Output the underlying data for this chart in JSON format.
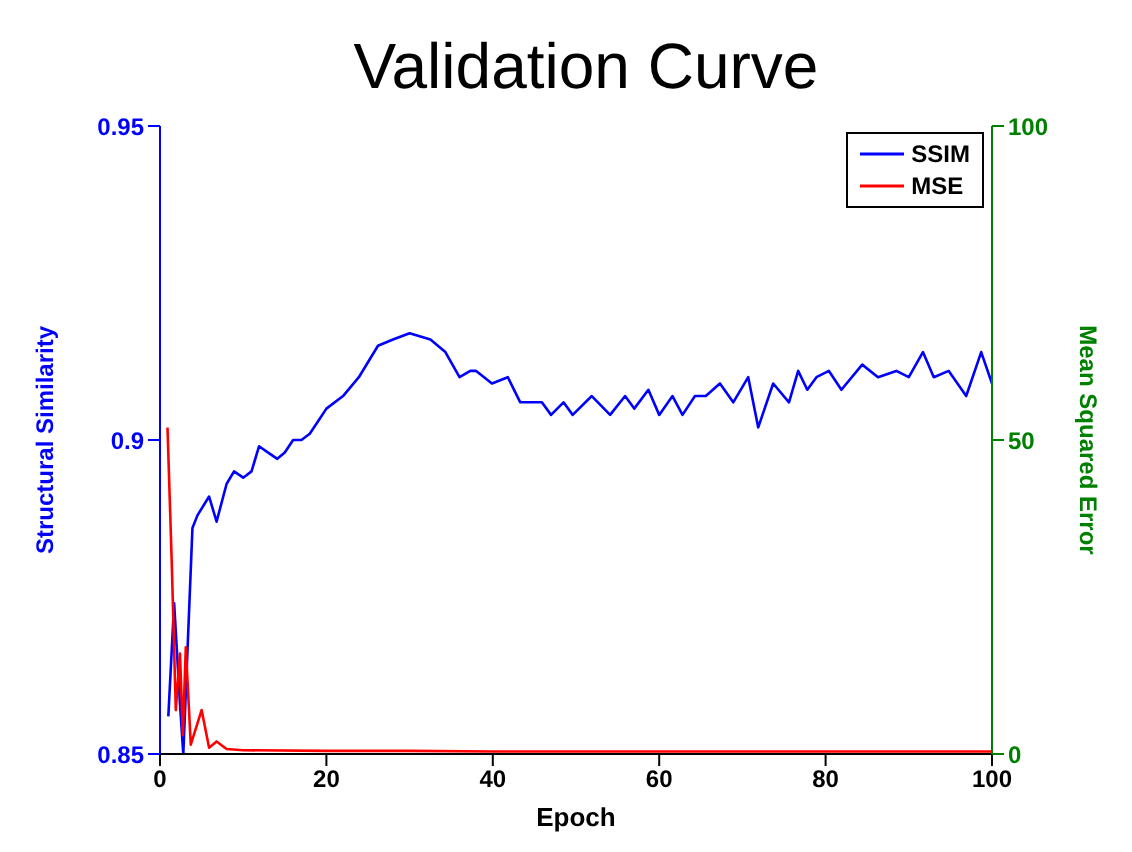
{
  "chart_data": {
    "type": "line",
    "title": "Validation Curve",
    "xlabel": "Epoch",
    "ylabel": "Structural Similarity",
    "y2label": "Mean Squared Error",
    "xlim": [
      0,
      100
    ],
    "xticks": [
      0,
      20,
      40,
      60,
      80,
      100
    ],
    "ylim": [
      0.85,
      0.95
    ],
    "yticks": [
      0.85,
      0.9,
      0.95
    ],
    "y2lim": [
      0,
      100
    ],
    "y2ticks": [
      0,
      50,
      100
    ],
    "legend": "top right",
    "grid": false,
    "series": [
      {
        "name": "SSIM",
        "color": "#0000ff",
        "x": [
          1,
          1.7,
          2.4,
          2.8,
          3.9,
          4.5,
          5.9,
          6.8,
          8,
          8.9,
          10,
          11,
          11.9,
          13,
          14.1,
          15,
          16,
          17,
          18,
          19,
          20,
          22,
          23.9,
          26.2,
          28,
          30,
          32.5,
          34.3,
          36,
          37.3,
          38,
          39.9,
          41.8,
          43.3,
          45.9,
          47,
          48.5,
          49.6,
          51.9,
          54.1,
          55.9,
          57,
          58.7,
          60,
          61.6,
          62.8,
          64.3,
          65.6,
          67.3,
          68.9,
          70.7,
          71.9,
          73.7,
          75.6,
          76.7,
          77.8,
          78.9,
          80.4,
          81.9,
          84.4,
          86.3,
          88.5,
          90,
          91.7,
          93,
          94.8,
          96.9,
          98.7,
          100
        ],
        "values": [
          0.856,
          0.874,
          0.858,
          0.85,
          0.886,
          0.888,
          0.891,
          0.887,
          0.893,
          0.895,
          0.894,
          0.895,
          0.899,
          0.898,
          0.897,
          0.898,
          0.9,
          0.9,
          0.901,
          0.903,
          0.905,
          0.907,
          0.91,
          0.915,
          0.916,
          0.917,
          0.916,
          0.914,
          0.91,
          0.911,
          0.911,
          0.909,
          0.91,
          0.906,
          0.906,
          0.904,
          0.906,
          0.904,
          0.907,
          0.904,
          0.907,
          0.905,
          0.908,
          0.904,
          0.907,
          0.904,
          0.907,
          0.907,
          0.909,
          0.906,
          0.91,
          0.902,
          0.909,
          0.906,
          0.911,
          0.908,
          0.91,
          0.911,
          0.908,
          0.912,
          0.91,
          0.911,
          0.91,
          0.914,
          0.91,
          0.911,
          0.907,
          0.914,
          0.909
        ]
      },
      {
        "name": "MSE",
        "color": "#ff0000",
        "axis": "y2",
        "x": [
          0.9,
          1.4,
          1.9,
          2.4,
          2.75,
          3.1,
          3.7,
          5,
          5.9,
          6.8,
          8,
          10,
          20,
          30,
          40,
          50,
          60,
          70,
          80,
          90,
          100
        ],
        "values": [
          52,
          31,
          7,
          16,
          3,
          17,
          1.5,
          7,
          1,
          2,
          0.8,
          0.6,
          0.5,
          0.5,
          0.4,
          0.4,
          0.4,
          0.4,
          0.4,
          0.4,
          0.4
        ]
      }
    ]
  }
}
